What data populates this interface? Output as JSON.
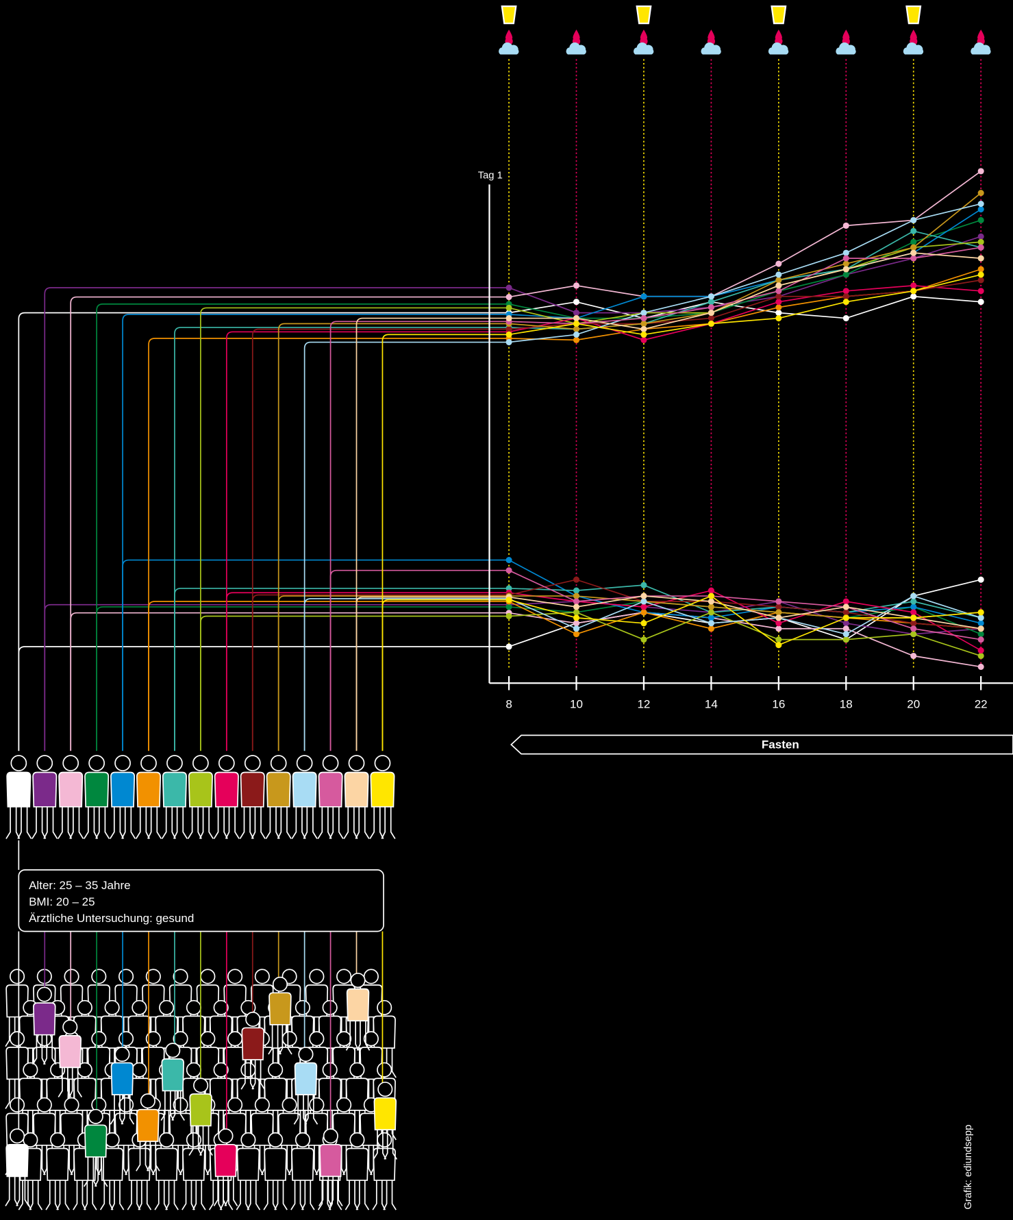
{
  "chart_data": {
    "type": "line",
    "x": [
      8,
      10,
      12,
      14,
      16,
      18,
      20,
      22
    ],
    "xticks": [
      8,
      10,
      12,
      14,
      16,
      18,
      20,
      22
    ],
    "xlim": [
      7.42,
      22.95
    ],
    "ylim": [
      0,
      100
    ],
    "axis_label": "Tag 1",
    "band_label": "Fasten",
    "series": [
      {
        "color": "#ffffff",
        "values": [
          68,
          70,
          67,
          70,
          68,
          67,
          71,
          70
        ]
      },
      {
        "color": "#7b2a8a",
        "values": [
          72.6,
          68,
          68,
          69,
          71,
          75,
          78,
          82
        ]
      },
      {
        "color": "#f4b8d4",
        "values": [
          70.9,
          73,
          71,
          71,
          77,
          84,
          85,
          94
        ]
      },
      {
        "color": "#00873e",
        "values": [
          69.6,
          67,
          67,
          68,
          72,
          75,
          81,
          85
        ]
      },
      {
        "color": "#0088d1",
        "values": [
          67.7,
          67,
          71,
          71,
          74,
          76,
          79,
          87
        ]
      },
      {
        "color": "#f29100",
        "values": [
          63.3,
          63,
          65,
          66,
          69,
          71,
          72,
          76
        ]
      },
      {
        "color": "#3bb8a9",
        "values": [
          65.3,
          65,
          66,
          70,
          74,
          76,
          83,
          80
        ]
      },
      {
        "color": "#a8c41a",
        "values": [
          68.9,
          66,
          68,
          68,
          73,
          76,
          80,
          81
        ]
      },
      {
        "color": "#e5005a",
        "values": [
          64.5,
          67,
          63,
          66,
          70,
          72,
          73,
          72
        ]
      },
      {
        "color": "#8b1a1a",
        "values": [
          65,
          66,
          66,
          67,
          71,
          71,
          72,
          74
        ]
      },
      {
        "color": "#c8981c",
        "values": [
          66,
          65,
          66,
          68,
          74,
          77,
          80,
          90
        ]
      },
      {
        "color": "#a8dcf4",
        "values": [
          62.6,
          64,
          68,
          71,
          75,
          79,
          85,
          88
        ]
      },
      {
        "color": "#d65a9e",
        "values": [
          66.4,
          66,
          67,
          69,
          72,
          78,
          78,
          80
        ]
      },
      {
        "color": "#fcd5a4",
        "values": [
          67,
          67,
          65,
          68,
          73,
          76,
          79,
          78
        ]
      },
      {
        "color": "#ffe600",
        "values": [
          64,
          66,
          64,
          66,
          67,
          70,
          72,
          75
        ]
      },
      {
        "color": "#ffffff",
        "values": [
          6.7,
          11,
          13,
          11,
          12,
          8,
          16,
          19
        ]
      },
      {
        "color": "#7b2a8a",
        "values": [
          14.4,
          15,
          14,
          13,
          15,
          11,
          9,
          10
        ]
      },
      {
        "color": "#f4b8d4",
        "values": [
          12.9,
          11,
          13,
          12,
          10,
          10,
          5,
          3
        ]
      },
      {
        "color": "#00873e",
        "values": [
          14,
          13,
          15,
          14,
          13,
          12,
          14,
          9
        ]
      },
      {
        "color": "#0088d1",
        "values": [
          22.6,
          16,
          13,
          12,
          14,
          13,
          14,
          11
        ]
      },
      {
        "color": "#f29100",
        "values": [
          15,
          9,
          13,
          10,
          13,
          12,
          11,
          10
        ]
      },
      {
        "color": "#3bb8a9",
        "values": [
          17.4,
          17,
          18,
          13,
          14,
          13,
          15,
          12
        ]
      },
      {
        "color": "#a8c41a",
        "values": [
          12.3,
          13,
          8,
          13,
          8,
          8,
          9,
          5
        ]
      },
      {
        "color": "#e5005a",
        "values": [
          16.6,
          15,
          14,
          17,
          11,
          15,
          13,
          6
        ]
      },
      {
        "color": "#8b1a1a",
        "values": [
          16.2,
          19,
          15,
          15,
          14,
          13,
          11,
          10
        ]
      },
      {
        "color": "#c8981c",
        "values": [
          16,
          16,
          15,
          14,
          13,
          12,
          12,
          13
        ]
      },
      {
        "color": "#a8dcf4",
        "values": [
          15.5,
          10,
          15,
          11,
          12,
          9,
          16,
          12
        ]
      },
      {
        "color": "#d65a9e",
        "values": [
          20.7,
          15,
          16,
          16,
          15,
          14,
          10,
          8
        ]
      },
      {
        "color": "#fcd5a4",
        "values": [
          15.8,
          14,
          16,
          15,
          12,
          14,
          12,
          10
        ]
      },
      {
        "color": "#ffe600",
        "values": [
          15.3,
          12,
          11,
          16,
          7,
          12,
          12,
          13
        ]
      }
    ]
  },
  "info_lines": [
    "Alter: 25 – 35 Jahre",
    "BMI:  20 – 25",
    "Ärztliche Untersuchung: gesund"
  ],
  "credit": "Grafik: ediundsepp"
}
